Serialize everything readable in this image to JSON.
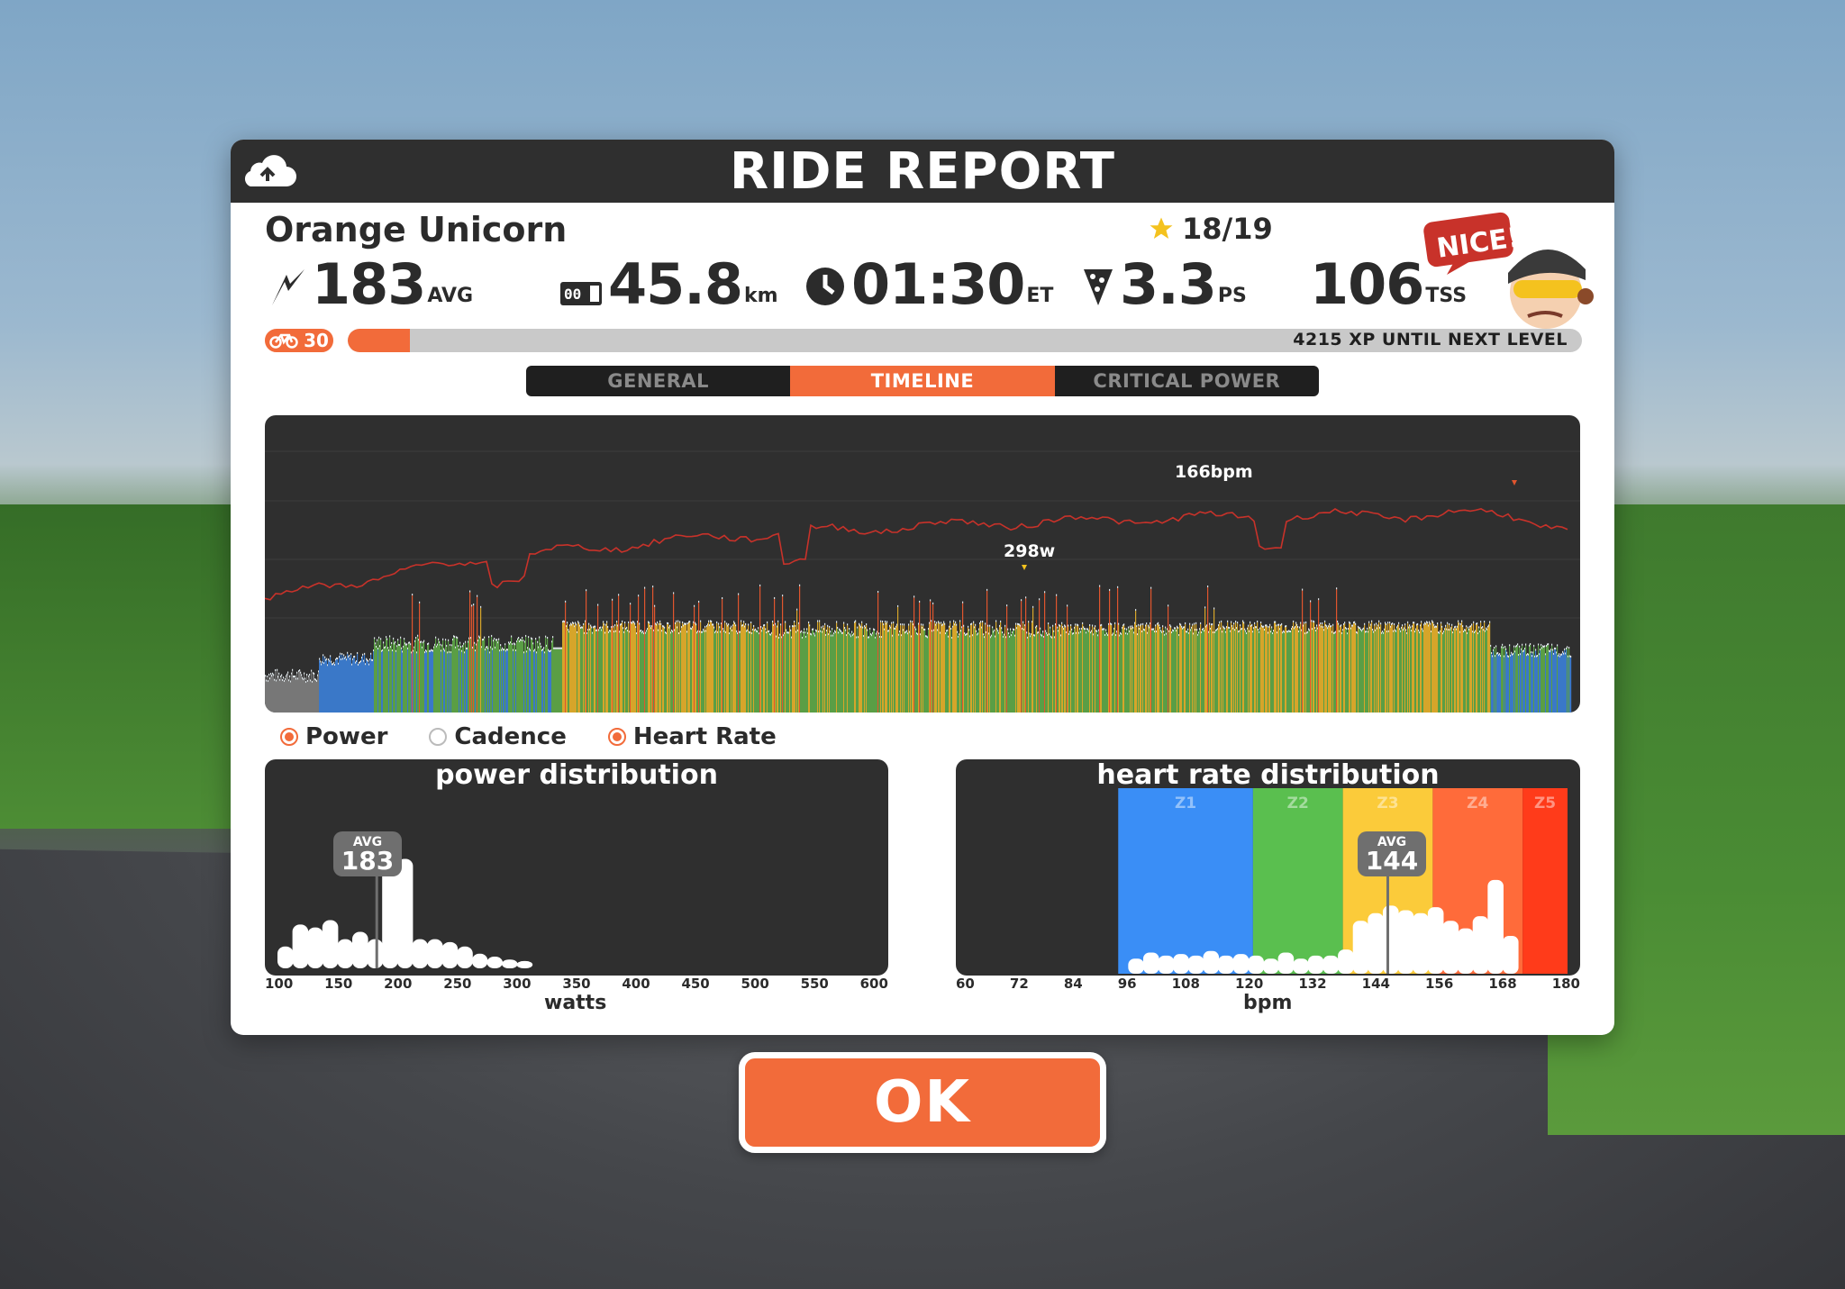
{
  "title": "RIDE REPORT",
  "rider": {
    "name": "Orange Unicorn",
    "stars": "18/19",
    "level": "30"
  },
  "stats": [
    {
      "value": "183",
      "unit": "AVG",
      "icon": "lightning-icon"
    },
    {
      "value": "45.8",
      "unit": "km",
      "icon": "odometer-icon"
    },
    {
      "value": "01:30",
      "unit": "ET",
      "icon": "clock-icon"
    },
    {
      "value": "3.3",
      "unit": "PS",
      "icon": "pizza-icon"
    },
    {
      "value": "106",
      "unit": "TSS",
      "icon": "none"
    }
  ],
  "mascot": {
    "speech": "NICE!"
  },
  "xp": {
    "text": "4215 XP UNTIL NEXT LEVEL",
    "progress": 0.05
  },
  "tabs": [
    {
      "label": "GENERAL",
      "active": false
    },
    {
      "label": "TIMELINE",
      "active": true
    },
    {
      "label": "CRITICAL POWER",
      "active": false
    }
  ],
  "timeline": {
    "peak_hr_label": "166bpm",
    "peak_power_label": "298w"
  },
  "legend": [
    {
      "label": "Power",
      "on": true
    },
    {
      "label": "Cadence",
      "on": false
    },
    {
      "label": "Heart Rate",
      "on": true
    }
  ],
  "power_dist": {
    "title": "power distribution",
    "avg_label": "AVG",
    "avg_value": "183",
    "xlabel": "watts",
    "ticks": [
      "100",
      "150",
      "200",
      "250",
      "300",
      "350",
      "400",
      "450",
      "500",
      "550",
      "600"
    ],
    "bins": [
      [
        100,
        0.15
      ],
      [
        112.5,
        0.3
      ],
      [
        125,
        0.28
      ],
      [
        137.5,
        0.33
      ],
      [
        150,
        0.2
      ],
      [
        162.5,
        0.25
      ],
      [
        175,
        0.2
      ],
      [
        187.5,
        0.8
      ],
      [
        200,
        0.75
      ],
      [
        212.5,
        0.2
      ],
      [
        225,
        0.2
      ],
      [
        237.5,
        0.18
      ],
      [
        250,
        0.15
      ],
      [
        262.5,
        0.1
      ],
      [
        275,
        0.08
      ],
      [
        287.5,
        0.06
      ],
      [
        300,
        0.05
      ]
    ]
  },
  "hr_dist": {
    "title": "heart rate distribution",
    "avg_label": "AVG",
    "avg_value": "144",
    "xlabel": "bpm",
    "ticks": [
      "60",
      "72",
      "84",
      "96",
      "108",
      "120",
      "132",
      "144",
      "156",
      "168",
      "180"
    ],
    "zones": [
      {
        "name": "Z1",
        "from": 90,
        "to": 117,
        "color": "#3a8ef6"
      },
      {
        "name": "Z2",
        "from": 117,
        "to": 135,
        "color": "#5abf4f"
      },
      {
        "name": "Z3",
        "from": 135,
        "to": 153,
        "color": "#fbcb3a"
      },
      {
        "name": "Z4",
        "from": 153,
        "to": 171,
        "color": "#ff6b3a"
      },
      {
        "name": "Z5",
        "from": 171,
        "to": 180,
        "color": "#ff3b1a"
      }
    ],
    "bins": [
      [
        92,
        0.1
      ],
      [
        95,
        0.14
      ],
      [
        98,
        0.12
      ],
      [
        101,
        0.13
      ],
      [
        104,
        0.12
      ],
      [
        107,
        0.15
      ],
      [
        110,
        0.12
      ],
      [
        113,
        0.13
      ],
      [
        116,
        0.12
      ],
      [
        119,
        0.1
      ],
      [
        122,
        0.14
      ],
      [
        125,
        0.1
      ],
      [
        128,
        0.12
      ],
      [
        131,
        0.12
      ],
      [
        134,
        0.16
      ],
      [
        137,
        0.35
      ],
      [
        140,
        0.4
      ],
      [
        143,
        0.45
      ],
      [
        146,
        0.42
      ],
      [
        149,
        0.4
      ],
      [
        152,
        0.44
      ],
      [
        155,
        0.35
      ],
      [
        158,
        0.3
      ],
      [
        161,
        0.38
      ],
      [
        164,
        0.62
      ],
      [
        167,
        0.25
      ]
    ]
  },
  "ok_button": "OK",
  "colors": {
    "accent": "#f26b3a",
    "panel_dark": "#2f2f2f",
    "hr_line": "#c8322a"
  }
}
